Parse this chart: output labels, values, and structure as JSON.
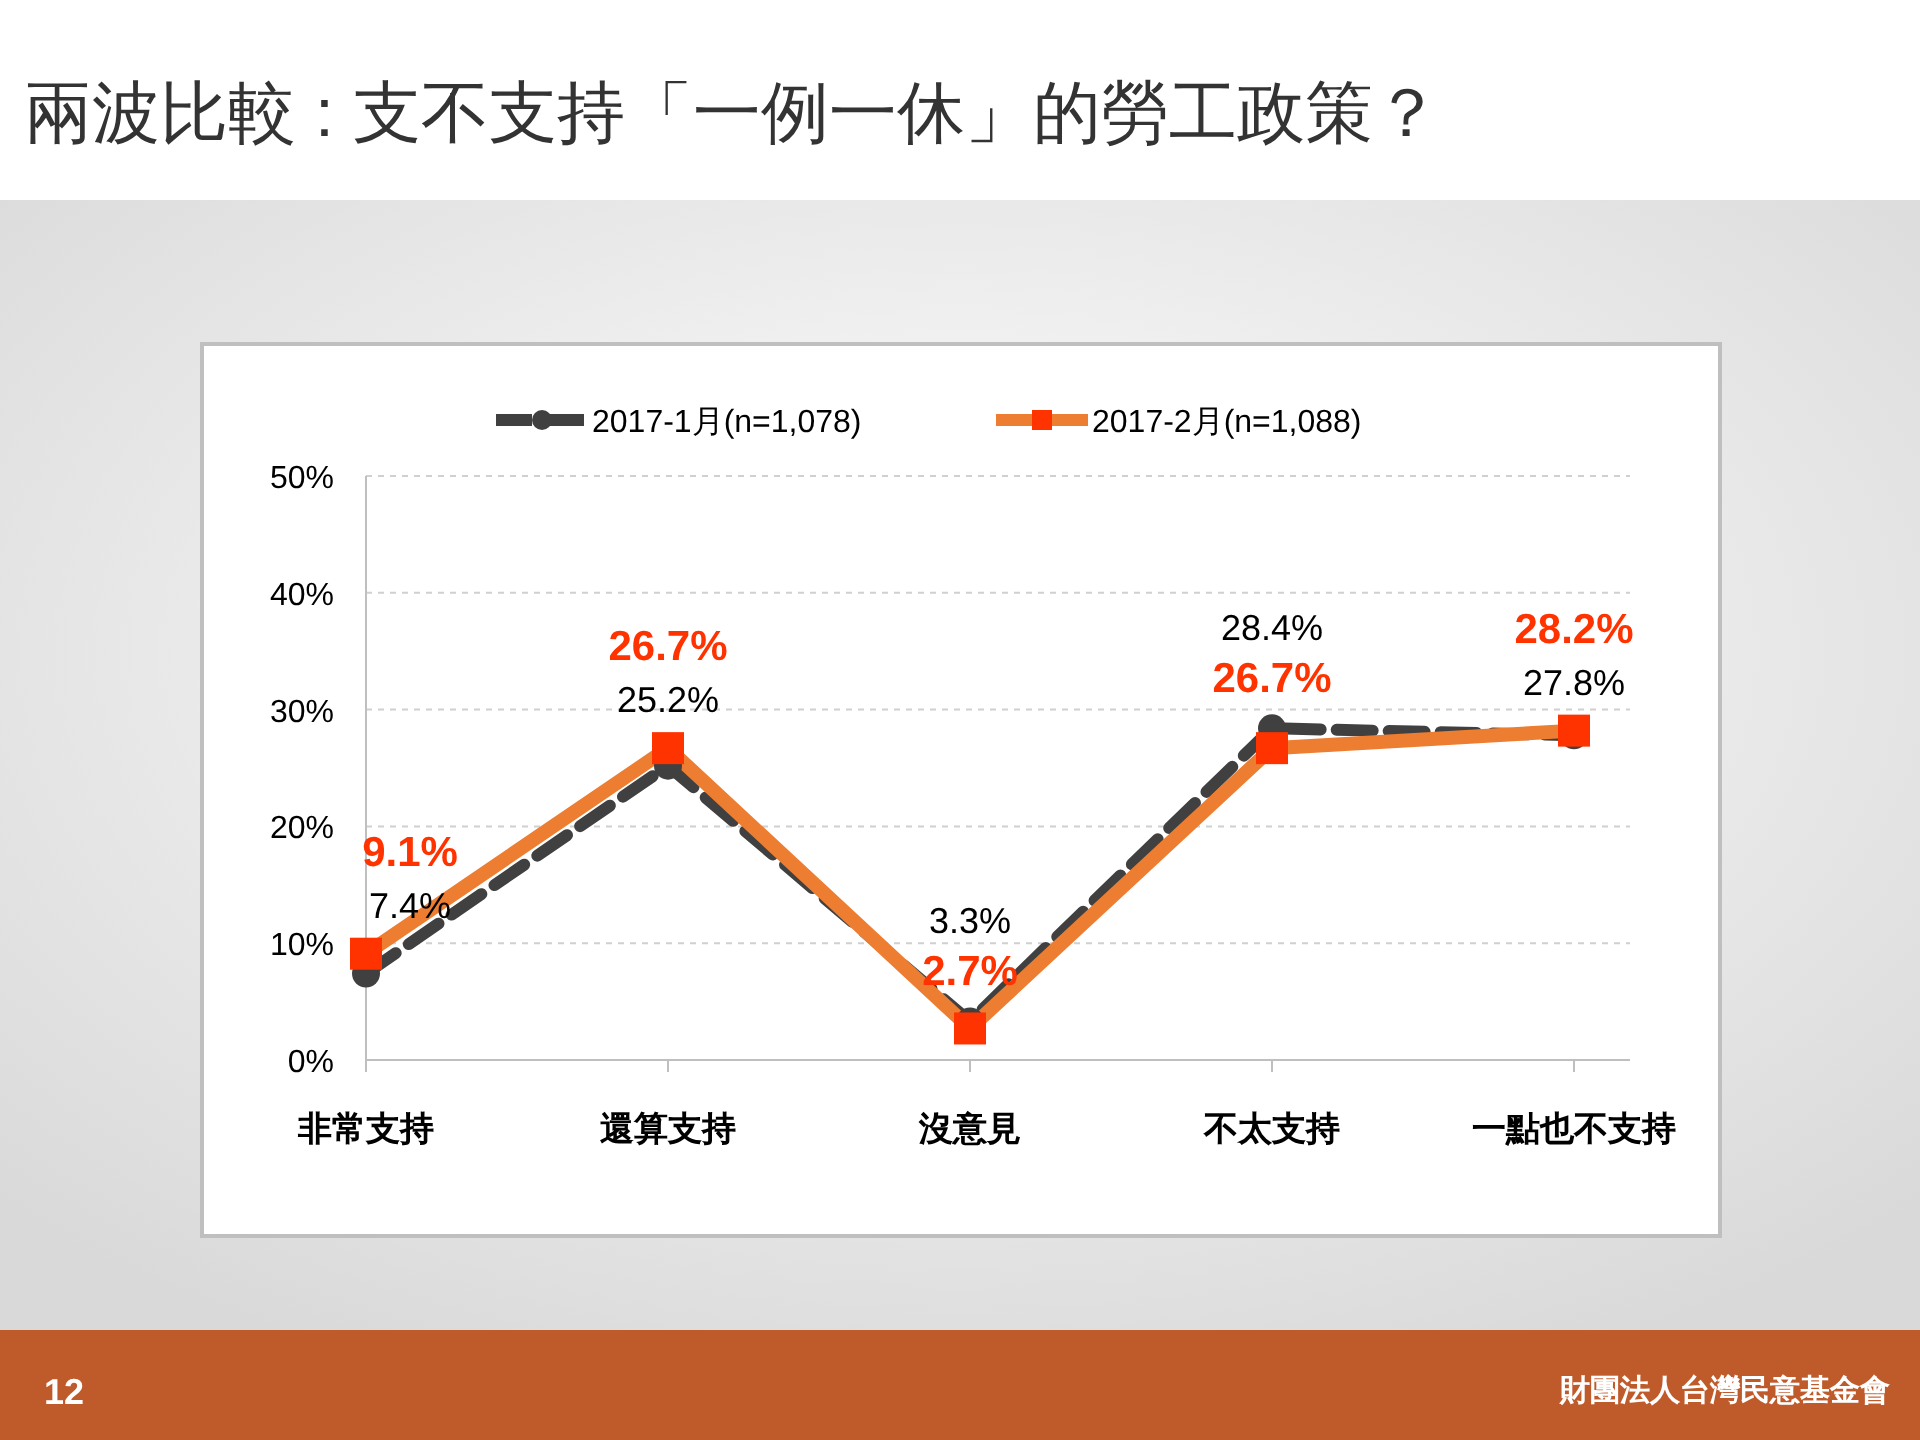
{
  "chart_data": {
    "type": "line",
    "title": "兩波比較 : 支不支持「一例一休」的勞工政策？",
    "categories": [
      "非常支持",
      "還算支持",
      "沒意見",
      "不太支持",
      "一點也不支持"
    ],
    "series": [
      {
        "name": "2017-1月(n=1,078)",
        "color": "#404040",
        "line_style": "dashed",
        "marker": "circle",
        "values": [
          7.4,
          25.2,
          3.3,
          28.4,
          27.8
        ],
        "value_labels": [
          "7.4%",
          "25.2%",
          "3.3%",
          "28.4%",
          "27.8%"
        ]
      },
      {
        "name": "2017-2月(n=1,088)",
        "color": "#ed7d31",
        "line_style": "solid",
        "marker": "square",
        "values": [
          9.1,
          26.7,
          2.7,
          26.7,
          28.2
        ],
        "value_labels": [
          "9.1%",
          "26.7%",
          "2.7%",
          "26.7%",
          "28.2%"
        ]
      }
    ],
    "ylim": [
      0,
      50
    ],
    "yticks": [
      {
        "value": 0,
        "label": "0%"
      },
      {
        "value": 10,
        "label": "10%"
      },
      {
        "value": 20,
        "label": "20%"
      },
      {
        "value": 30,
        "label": "30%"
      },
      {
        "value": 40,
        "label": "40%"
      },
      {
        "value": 50,
        "label": "50%"
      }
    ],
    "grid": "y",
    "legend": "top",
    "annotations": [
      "12",
      "財團法人台灣民意基金會"
    ]
  }
}
